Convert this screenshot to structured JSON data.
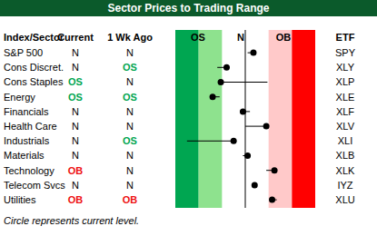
{
  "title": "Sector Prices to Trading Range",
  "headers": [
    "Index/Sector",
    "Current",
    "1 Wk Ago",
    "ETF"
  ],
  "range_labels": [
    "OS",
    "N",
    "OB"
  ],
  "footnote": "Circle represents current level.",
  "rows": [
    {
      "sector": "S&P 500",
      "current_status": "N",
      "week_ago_status": "N",
      "etf": "SPY"
    },
    {
      "sector": "Cons Discret.",
      "current_status": "N",
      "week_ago_status": "OS",
      "etf": "XLY"
    },
    {
      "sector": "Cons Staples",
      "current_status": "OS",
      "week_ago_status": "N",
      "etf": "XLP"
    },
    {
      "sector": "Energy",
      "current_status": "OS",
      "week_ago_status": "OS",
      "etf": "XLE"
    },
    {
      "sector": "Financials",
      "current_status": "N",
      "week_ago_status": "N",
      "etf": "XLF"
    },
    {
      "sector": "Health Care",
      "current_status": "N",
      "week_ago_status": "N",
      "etf": "XLV"
    },
    {
      "sector": "Industrials",
      "current_status": "N",
      "week_ago_status": "OS",
      "etf": "XLI"
    },
    {
      "sector": "Materials",
      "current_status": "N",
      "week_ago_status": "N",
      "etf": "XLB"
    },
    {
      "sector": "Technology",
      "current_status": "OB",
      "week_ago_status": "N",
      "etf": "XLK"
    },
    {
      "sector": "Telecom Svcs",
      "current_status": "N",
      "week_ago_status": "N",
      "etf": "IYZ"
    },
    {
      "sector": "Utilities",
      "current_status": "OB",
      "week_ago_status": "OB",
      "etf": "XLU"
    }
  ],
  "chart_data": {
    "type": "dot_range",
    "xlim": [
      -3,
      3
    ],
    "tick_labels": false,
    "neutral_line": 0,
    "zones": [
      {
        "from": -3,
        "to": -2,
        "color": "#00a651"
      },
      {
        "from": -2,
        "to": -1,
        "color": "#8ee28e"
      },
      {
        "from": 1,
        "to": 2,
        "color": "#ffc9c9"
      },
      {
        "from": 2,
        "to": 3,
        "color": "#ff0000"
      }
    ],
    "current": [
      0.35,
      -0.8,
      -1.05,
      -1.4,
      -0.1,
      0.9,
      -0.5,
      0.1,
      1.25,
      0.4,
      1.15
    ],
    "week_ago": [
      0.1,
      -1.2,
      0.95,
      -1.1,
      0.2,
      0.0,
      -2.5,
      -0.1,
      0.9,
      0.3,
      1.35
    ]
  }
}
